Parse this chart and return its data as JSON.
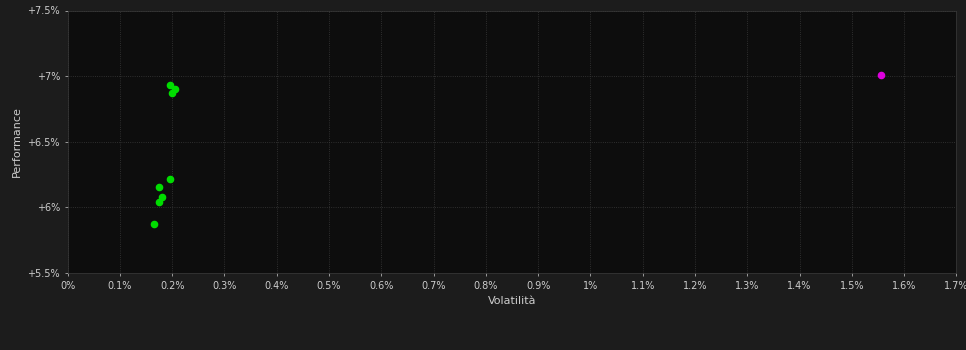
{
  "background_color": "#1c1c1c",
  "plot_bg_color": "#0d0d0d",
  "grid_color": "#3a3a3a",
  "text_color": "#cccccc",
  "xlabel": "Volatilità",
  "ylabel": "Performance",
  "xlim": [
    0.0,
    0.017
  ],
  "ylim": [
    0.055,
    0.075
  ],
  "xtick_values": [
    0.0,
    0.001,
    0.002,
    0.003,
    0.004,
    0.005,
    0.006,
    0.007,
    0.008,
    0.009,
    0.01,
    0.011,
    0.012,
    0.013,
    0.014,
    0.015,
    0.016,
    0.017
  ],
  "xtick_labels": [
    "0%",
    "0.1%",
    "0.2%",
    "0.3%",
    "0.4%",
    "0.5%",
    "0.6%",
    "0.7%",
    "0.8%",
    "0.9%",
    "1%",
    "1.1%",
    "1.2%",
    "1.3%",
    "1.4%",
    "1.5%",
    "1.6%",
    "1.7%"
  ],
  "ytick_values": [
    0.055,
    0.06,
    0.065,
    0.07,
    0.075
  ],
  "ytick_labels": [
    "+5.5%",
    "+6%",
    "+6.5%",
    "+7%",
    "+7.5%"
  ],
  "green_points": [
    [
      0.00195,
      0.06935
    ],
    [
      0.00205,
      0.069
    ],
    [
      0.002,
      0.0687
    ],
    [
      0.00195,
      0.0622
    ],
    [
      0.00175,
      0.06155
    ],
    [
      0.0018,
      0.0608
    ],
    [
      0.00175,
      0.0604
    ],
    [
      0.00165,
      0.0587
    ]
  ],
  "magenta_points": [
    [
      0.01555,
      0.07005
    ]
  ],
  "green_color": "#00dd00",
  "magenta_color": "#dd00dd",
  "point_size": 20
}
